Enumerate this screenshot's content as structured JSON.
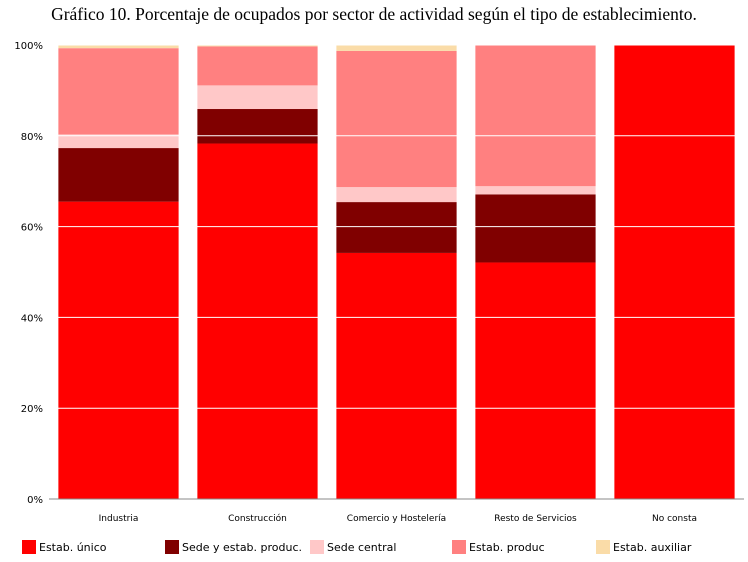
{
  "chart_data": {
    "type": "bar",
    "stacked": true,
    "percent": true,
    "title": "Gráfico 10. Porcentaje de ocupados por sector de actividad según el tipo de establecimiento.",
    "categories": [
      "Industria",
      "Construcción",
      "Comercio y Hostelería",
      "Resto de Servicios",
      "No consta"
    ],
    "ylim": [
      0,
      100
    ],
    "yticks": [
      "0%",
      "20%",
      "40%",
      "60%",
      "80%",
      "100%"
    ],
    "grid": true,
    "legend_position": "bottom",
    "series": [
      {
        "name": "Estab. único",
        "color": "#ff0000",
        "values": [
          65.5,
          78.3,
          54.2,
          52.1,
          100.0
        ]
      },
      {
        "name": "Sede y estab. produc.",
        "color": "#800000",
        "values": [
          11.8,
          7.6,
          11.2,
          15.0,
          0
        ]
      },
      {
        "name": "Sede central",
        "color": "#ffc8c8",
        "values": [
          3.0,
          5.2,
          3.3,
          1.8,
          0
        ]
      },
      {
        "name": "Estab. produc",
        "color": "#ff8080",
        "values": [
          19.0,
          8.6,
          30.0,
          31.1,
          0
        ]
      },
      {
        "name": "Estab. auxiliar",
        "color": "#fadca8",
        "values": [
          0.7,
          0.3,
          1.3,
          0.0,
          0
        ]
      }
    ]
  }
}
